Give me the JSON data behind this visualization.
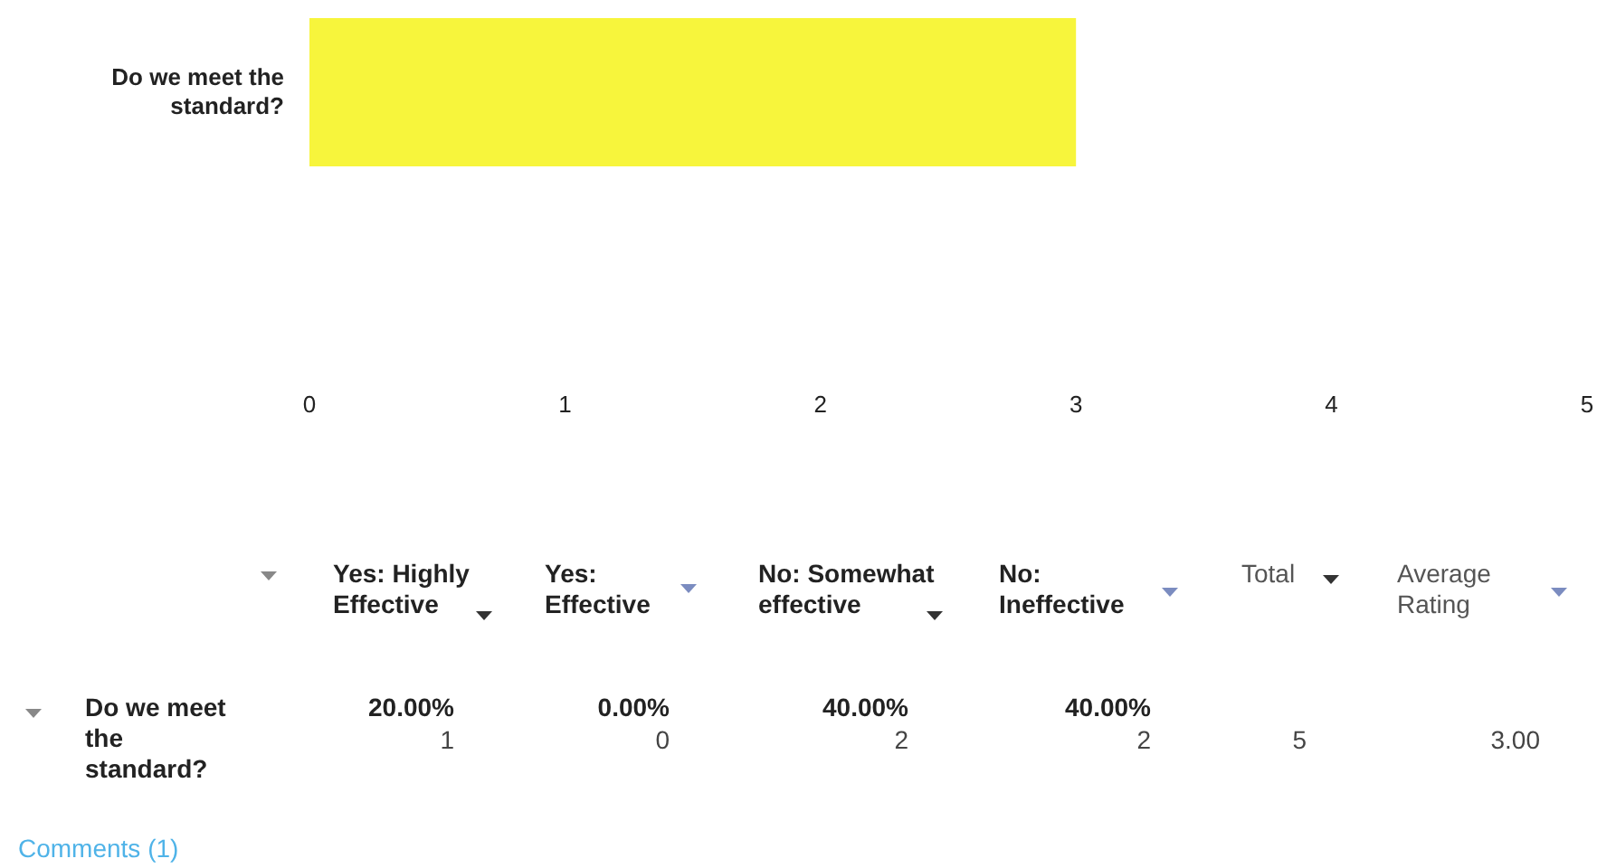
{
  "chart_data": {
    "type": "bar",
    "orientation": "horizontal",
    "categories": [
      "Do we meet the standard?"
    ],
    "values": [
      3
    ],
    "color": "#f7f53c",
    "xlim": [
      0,
      5
    ],
    "xticks": [
      0,
      1,
      2,
      3,
      4,
      5
    ],
    "annotations": [
      "Yes: Highly Effective",
      "Yes: Effective",
      "No: Somewhat effective",
      "No: Ineffective",
      "Total",
      "Average Rating",
      "Do we meet the standard?",
      "20.00%",
      "0.00%",
      "40.00%",
      "40.00%",
      "1",
      "0",
      "2",
      "2",
      "5",
      "3.00",
      "Comments (1)"
    ]
  }
}
